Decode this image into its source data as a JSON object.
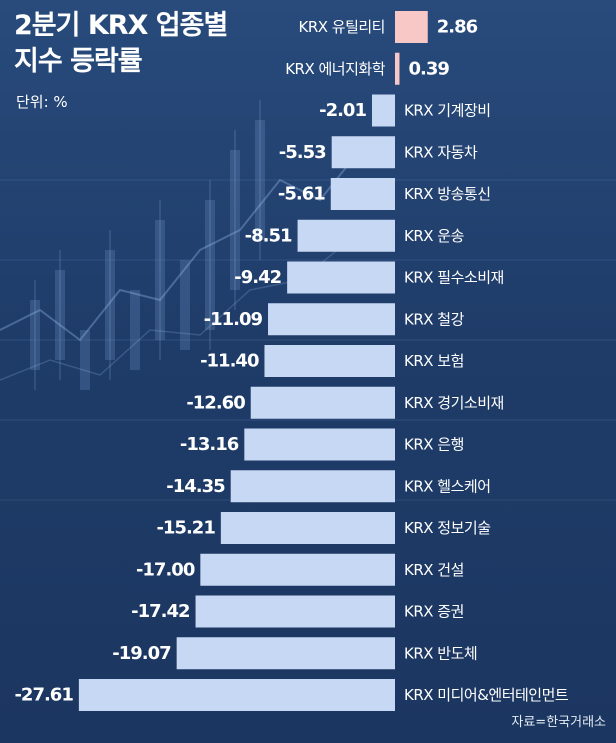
{
  "title_line1": "2분기 KRX 업종별",
  "title_line2": "지수 등락률",
  "unit_label": "단위: %",
  "source_label": "자료=한국거래소",
  "colors": {
    "positive_bar": "#f8c8c6",
    "negative_bar": "#c7d8f4",
    "text": "#ffffff"
  },
  "chart_data": {
    "type": "bar",
    "orientation": "horizontal",
    "title": "2분기 KRX 업종별 지수 등락률",
    "unit": "%",
    "categories": [
      "KRX 유틸리티",
      "KRX 에너지화학",
      "KRX 기계장비",
      "KRX 자동차",
      "KRX 방송통신",
      "KRX 운송",
      "KRX 필수소비재",
      "KRX 철강",
      "KRX 보험",
      "KRX 경기소비재",
      "KRX 은행",
      "KRX 헬스케어",
      "KRX 정보기술",
      "KRX 건설",
      "KRX 증권",
      "KRX 반도체",
      "KRX 미디어&엔터테인먼트"
    ],
    "values": [
      2.86,
      0.39,
      -2.01,
      -5.53,
      -5.61,
      -8.51,
      -9.42,
      -11.09,
      -11.4,
      -12.6,
      -13.16,
      -14.35,
      -15.21,
      -17.0,
      -17.42,
      -19.07,
      -27.61
    ],
    "value_labels": [
      "2.86",
      "0.39",
      "-2.01",
      "-5.53",
      "-5.61",
      "-8.51",
      "-9.42",
      "-11.09",
      "-11.40",
      "-12.60",
      "-13.16",
      "-14.35",
      "-15.21",
      "-17.00",
      "-17.42",
      "-19.07",
      "-27.61"
    ],
    "grid": false,
    "legend": "none"
  }
}
